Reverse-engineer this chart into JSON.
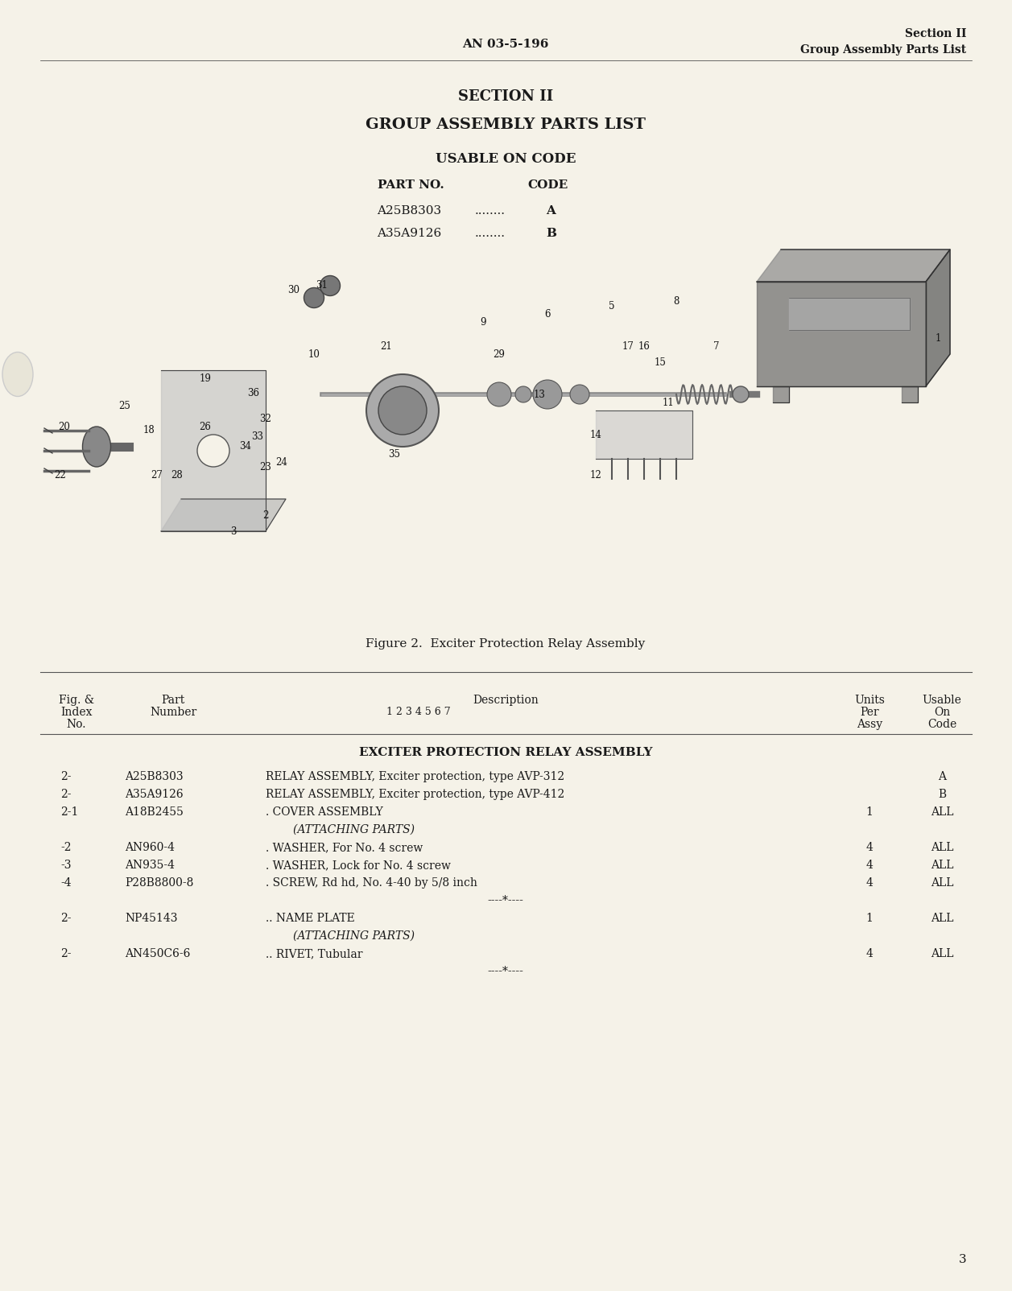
{
  "bg_color": "#f5f2e8",
  "header_center": "AN 03-5-196",
  "header_right_line1": "Section II",
  "header_right_line2": "Group Assembly Parts List",
  "section_title": "SECTION II",
  "section_subtitle": "GROUP ASSEMBLY PARTS LIST",
  "usable_title": "USABLE ON CODE",
  "part_no_header": "PART NO.",
  "code_header": "CODE",
  "parts_usable": [
    {
      "part": "A25B8303",
      "dots": "........",
      "code": "A"
    },
    {
      "part": "A35A9126",
      "dots": "........",
      "code": "B"
    }
  ],
  "figure_caption": "Figure 2.  Exciter Protection Relay Assembly",
  "table_headers": {
    "fig_index": "Fig. &\nIndex\nNo.",
    "part_number": "Part\nNumber",
    "description_col": "Description",
    "desc_sub": "1 2 3 4 5 6 7",
    "units_per_assy": "Units\nPer\nAssy",
    "usable_on_code": "Usable\nOn\nCode"
  },
  "assembly_title": "EXCITER PROTECTION RELAY ASSEMBLY",
  "table_rows": [
    {
      "fig": "2-",
      "part": "A25B8303",
      "desc": "RELAY ASSEMBLY, Exciter protection, type AVP-312",
      "units": "",
      "code": "A"
    },
    {
      "fig": "2-",
      "part": "A35A9126",
      "desc": "RELAY ASSEMBLY, Exciter protection, type AVP-412",
      "units": "",
      "code": "B"
    },
    {
      "fig": "2-1",
      "part": "A18B2455",
      "desc": ". COVER ASSEMBLY",
      "units": "1",
      "code": "ALL"
    },
    {
      "fig": "",
      "part": "",
      "desc": "(ATTACHING PARTS)",
      "units": "",
      "code": ""
    },
    {
      "fig": "-2",
      "part": "AN960-4",
      "desc": ". WASHER, For No. 4 screw",
      "units": "4",
      "code": "ALL"
    },
    {
      "fig": "-3",
      "part": "AN935-4",
      "desc": ". WASHER, Lock for No. 4 screw",
      "units": "4",
      "code": "ALL"
    },
    {
      "fig": "-4",
      "part": "P28B8800-8",
      "desc": ". SCREW, Rd hd, No. 4-40 by 5/8 inch",
      "units": "4",
      "code": "ALL"
    },
    {
      "fig": "",
      "part": "",
      "desc": "----*----",
      "units": "",
      "code": ""
    },
    {
      "fig": "2-",
      "part": "NP45143",
      "desc": ".. NAME PLATE",
      "units": "1",
      "code": "ALL"
    },
    {
      "fig": "",
      "part": "",
      "desc": "(ATTACHING PARTS)",
      "units": "",
      "code": ""
    },
    {
      "fig": "2-",
      "part": "AN450C6-6",
      "desc": ".. RIVET, Tubular",
      "units": "4",
      "code": "ALL"
    },
    {
      "fig": "",
      "part": "",
      "desc": "----*----",
      "units": "",
      "code": ""
    }
  ],
  "page_number": "3",
  "text_color": "#1a1a1a",
  "line_color": "#333333"
}
